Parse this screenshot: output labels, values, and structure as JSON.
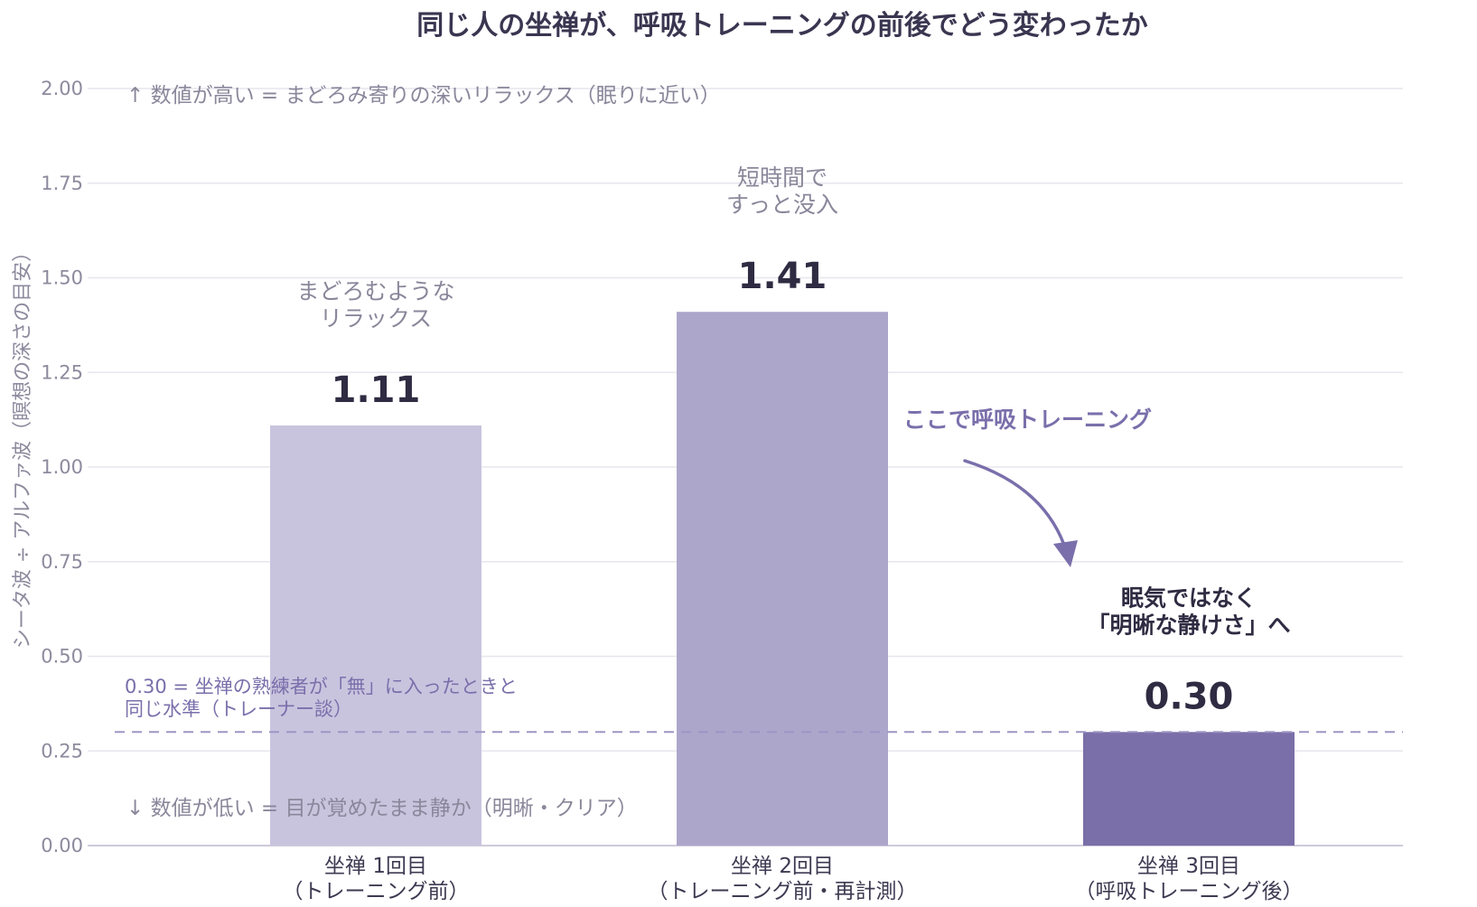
{
  "chart_data": {
    "type": "bar",
    "title": "同じ人の坐禅が、呼吸トレーニングの前後でどう変わったか",
    "ylabel": "シータ波 ÷ アルファ波（瞑想の深さの目安）",
    "ylim": [
      0,
      2.0
    ],
    "yticks": [
      "0.00",
      "0.25",
      "0.50",
      "0.75",
      "1.00",
      "1.25",
      "1.50",
      "1.75",
      "2.00"
    ],
    "grid": true,
    "categories": [
      {
        "line1": "坐禅 1回目",
        "line2": "（トレーニング前）"
      },
      {
        "line1": "坐禅 2回目",
        "line2": "（トレーニング前・再計測）"
      },
      {
        "line1": "坐禅 3回目",
        "line2": "（呼吸トレーニング後）"
      }
    ],
    "values": [
      1.11,
      1.41,
      0.3
    ],
    "value_labels": [
      "1.11",
      "1.41",
      "0.30"
    ],
    "bar_colors": [
      "#c9c4de",
      "#ada6cb",
      "#7a6fa8"
    ],
    "bar_annotations": [
      [
        "まどろむような",
        "リラックス"
      ],
      [
        "短時間で",
        "すっと没入"
      ],
      [
        "眠気ではなく",
        "「明晰な静けさ」へ"
      ]
    ],
    "reference_line": {
      "value": 0.3,
      "color": "#9d96c4",
      "text": [
        "0.30 = 坐禅の熟練者が「無」に入ったときと",
        "同じ水準（トレーナー談）"
      ]
    },
    "arrow_annotation": {
      "text": "ここで呼吸トレーニング",
      "color": "#7a6fab"
    },
    "top_note": "↑ 数値が高い = まどろみ寄りの深いリラックス（眠りに近い）",
    "bottom_note": "↓ 数値が低い = 目が覚めたまま静か（明晰・クリア）"
  }
}
